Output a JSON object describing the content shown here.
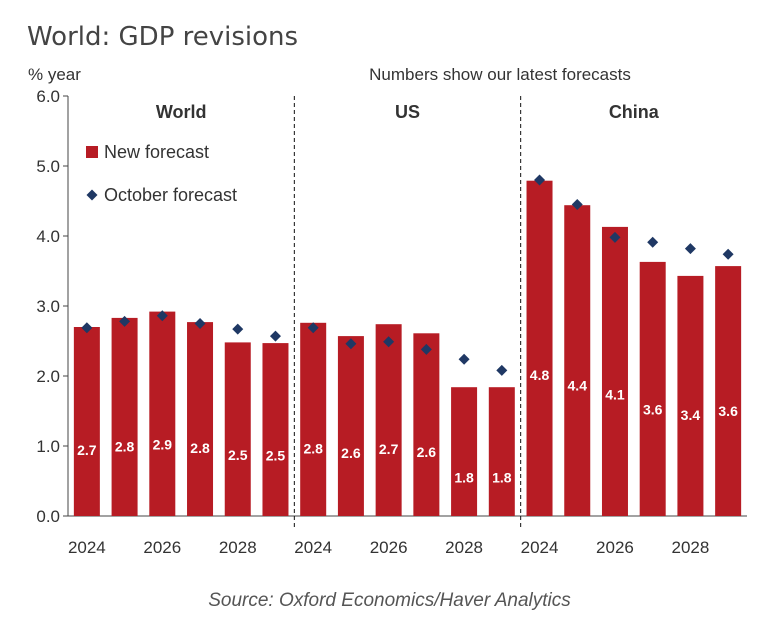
{
  "title": "World: GDP revisions",
  "source": "Source: Oxford Economics/Haver Analytics",
  "colors": {
    "bar": "#b71c24",
    "marker": "#1f3864",
    "axis": "#444444",
    "label": "#ffffff"
  },
  "chart_data": {
    "type": "bar",
    "ylabel": "% year",
    "annotation": "Numbers show our latest forecasts",
    "ylim": [
      0,
      6
    ],
    "yticks": [
      "0.0",
      "1.0",
      "2.0",
      "3.0",
      "4.0",
      "5.0",
      "6.0"
    ],
    "grid": false,
    "legend": {
      "position": "top-left",
      "items": [
        "New forecast",
        "October forecast"
      ]
    },
    "series_names": {
      "bar": "New forecast",
      "marker": "October forecast"
    },
    "panels": [
      {
        "name": "World",
        "years": [
          2024,
          2025,
          2026,
          2027,
          2028,
          2029
        ],
        "xtick_labels": [
          "2024",
          "2026",
          "2028"
        ],
        "new_forecast": [
          2.7,
          2.83,
          2.92,
          2.77,
          2.48,
          2.47
        ],
        "new_labels": [
          "2.7",
          "2.8",
          "2.9",
          "2.8",
          "2.5",
          "2.5"
        ],
        "october_forecast": [
          2.69,
          2.78,
          2.86,
          2.75,
          2.67,
          2.57
        ]
      },
      {
        "name": "US",
        "years": [
          2024,
          2025,
          2026,
          2027,
          2028,
          2029
        ],
        "xtick_labels": [
          "2024",
          "2026",
          "2028"
        ],
        "new_forecast": [
          2.76,
          2.57,
          2.74,
          2.61,
          1.84,
          1.84
        ],
        "new_labels": [
          "2.8",
          "2.6",
          "2.7",
          "2.6",
          "1.8",
          "1.8"
        ],
        "october_forecast": [
          2.69,
          2.46,
          2.49,
          2.38,
          2.24,
          2.08
        ]
      },
      {
        "name": "China",
        "years": [
          2024,
          2025,
          2026,
          2027,
          2028,
          2029
        ],
        "xtick_labels": [
          "2024",
          "2026",
          "2028"
        ],
        "new_forecast": [
          4.79,
          4.44,
          4.13,
          3.63,
          3.43,
          3.57
        ],
        "new_labels": [
          "4.8",
          "4.4",
          "4.1",
          "3.6",
          "3.4",
          "3.6"
        ],
        "october_forecast": [
          4.8,
          4.45,
          3.98,
          3.91,
          3.82,
          3.74
        ]
      }
    ]
  }
}
